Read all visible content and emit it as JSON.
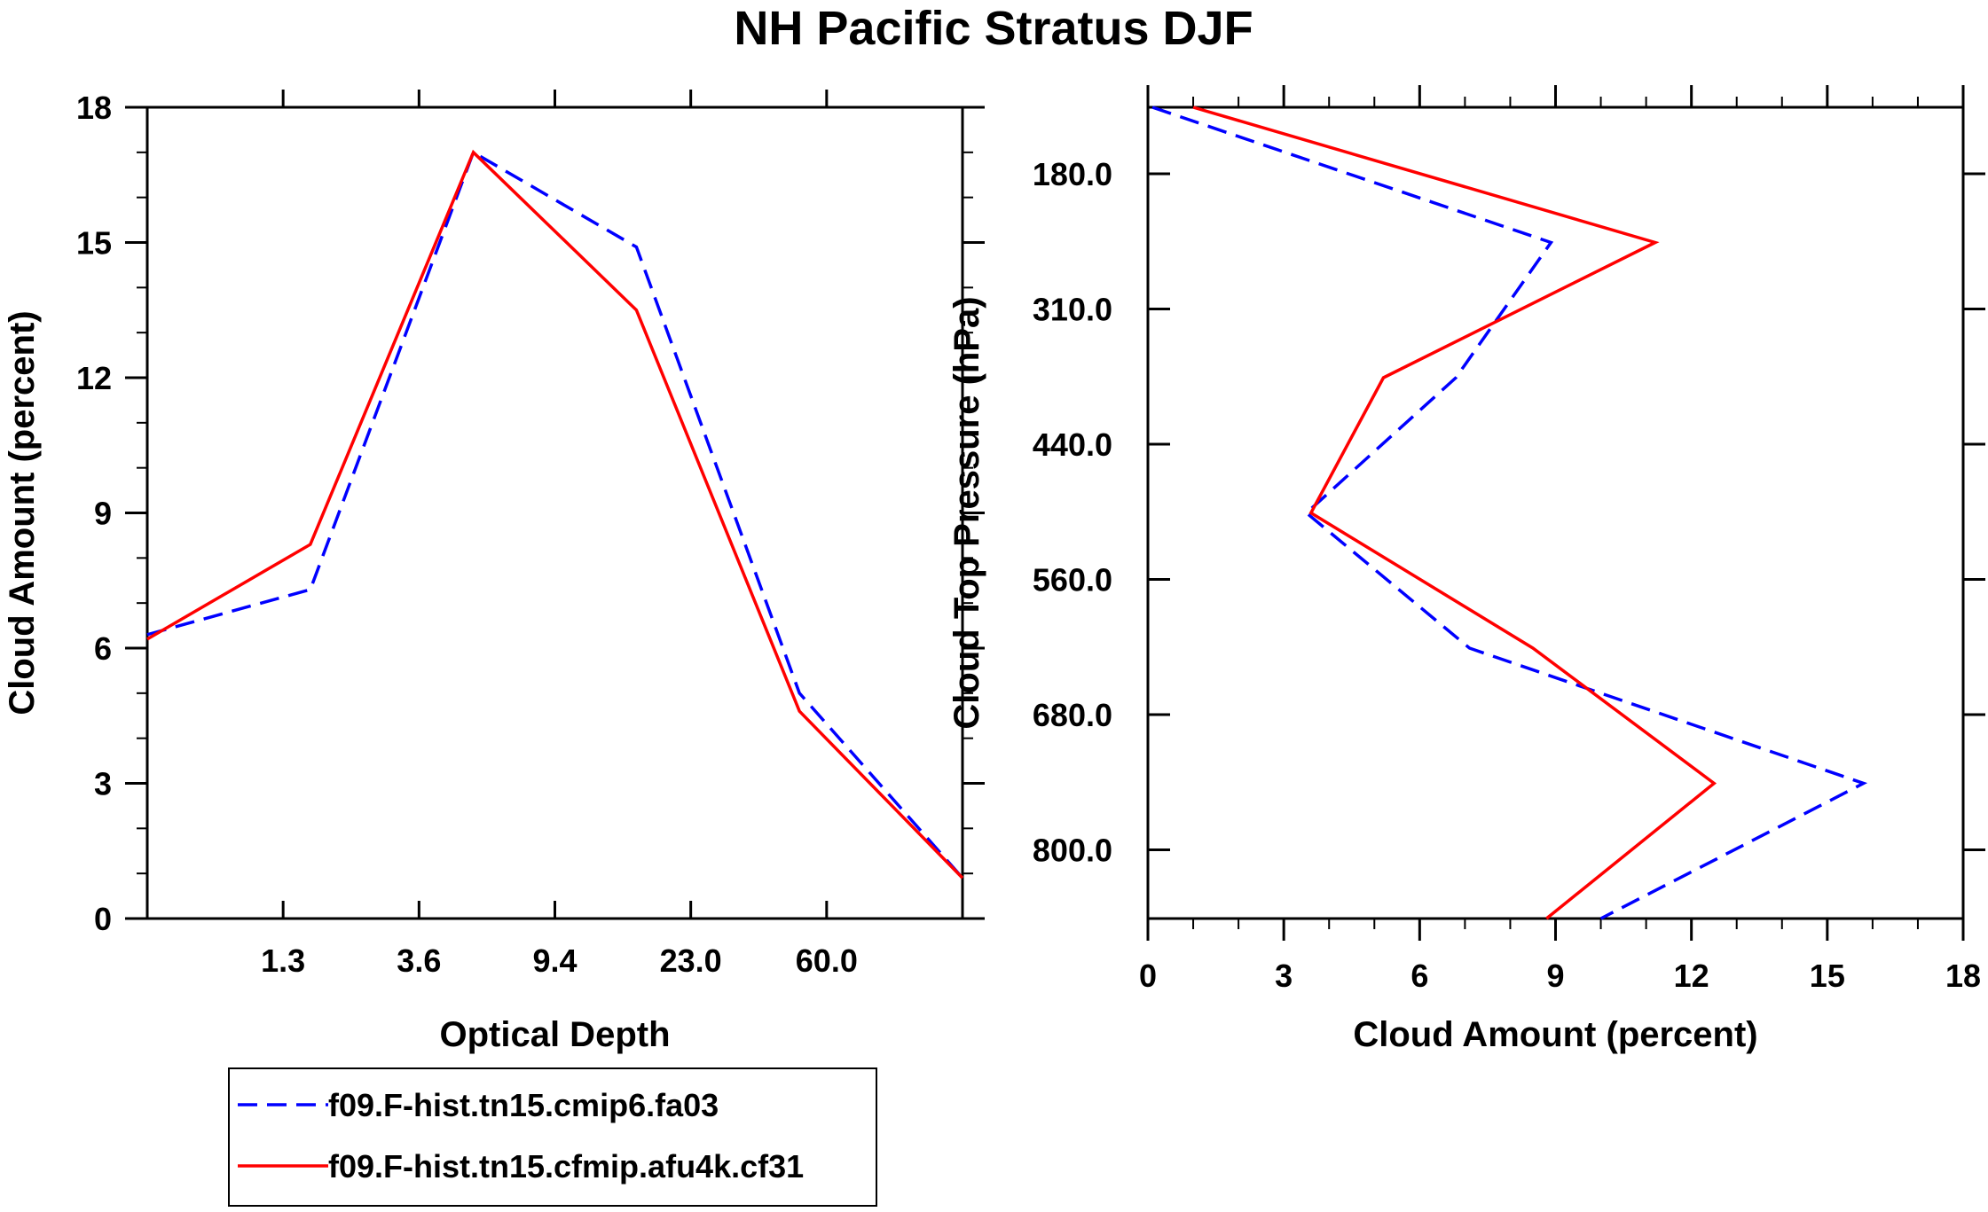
{
  "title": "NH Pacific Stratus DJF",
  "colors": {
    "series1": "#0000ff",
    "series2": "#ff0000",
    "axis": "#000000"
  },
  "legend": {
    "entries": [
      {
        "label": "f09.F-hist.tn15.cmip6.fa03",
        "color": "#0000ff",
        "style": "dashed"
      },
      {
        "label": "f09.F-hist.tn15.cfmip.afu4k.cf31",
        "color": "#ff0000",
        "style": "solid"
      }
    ]
  },
  "chart_data": [
    {
      "type": "line",
      "xlabel": "Optical Depth",
      "ylabel": "Cloud Amount (percent)",
      "x_bins": 7,
      "x_tick_labels": [
        "1.3",
        "3.6",
        "9.4",
        "23.0",
        "60.0"
      ],
      "y_ticks": [
        0,
        3,
        6,
        9,
        12,
        15,
        18
      ],
      "ylim": [
        0,
        18
      ],
      "grid": false,
      "series": [
        {
          "name": "f09.F-hist.tn15.cmip6.fa03",
          "style": "dashed",
          "color": "#0000ff",
          "values": [
            6.3,
            7.3,
            17.0,
            14.9,
            5.0,
            0.9
          ]
        },
        {
          "name": "f09.F-hist.tn15.cfmip.afu4k.cf31",
          "style": "solid",
          "color": "#ff0000",
          "values": [
            6.2,
            8.3,
            17.0,
            13.5,
            4.6,
            0.9
          ]
        }
      ]
    },
    {
      "type": "line",
      "orientation": "vertical",
      "xlabel": "Cloud Amount (percent)",
      "ylabel": "Cloud Top Pressure (hPa)",
      "xlim": [
        0,
        18
      ],
      "x_ticks": [
        0,
        3,
        6,
        9,
        12,
        15,
        18
      ],
      "y_bins": 6,
      "y_tick_labels": [
        "180.0",
        "310.0",
        "440.0",
        "560.0",
        "680.0",
        "800.0"
      ],
      "grid": false,
      "series": [
        {
          "name": "f09.F-hist.tn15.cmip6.fa03",
          "style": "dashed",
          "color": "#0000ff",
          "values": [
            0.1,
            8.9,
            6.8,
            3.5,
            7.1,
            15.8,
            10.0
          ]
        },
        {
          "name": "f09.F-hist.tn15.cfmip.afu4k.cf31",
          "style": "solid",
          "color": "#ff0000",
          "values": [
            1.0,
            11.2,
            5.2,
            3.6,
            8.5,
            12.5,
            8.8
          ]
        }
      ]
    }
  ]
}
